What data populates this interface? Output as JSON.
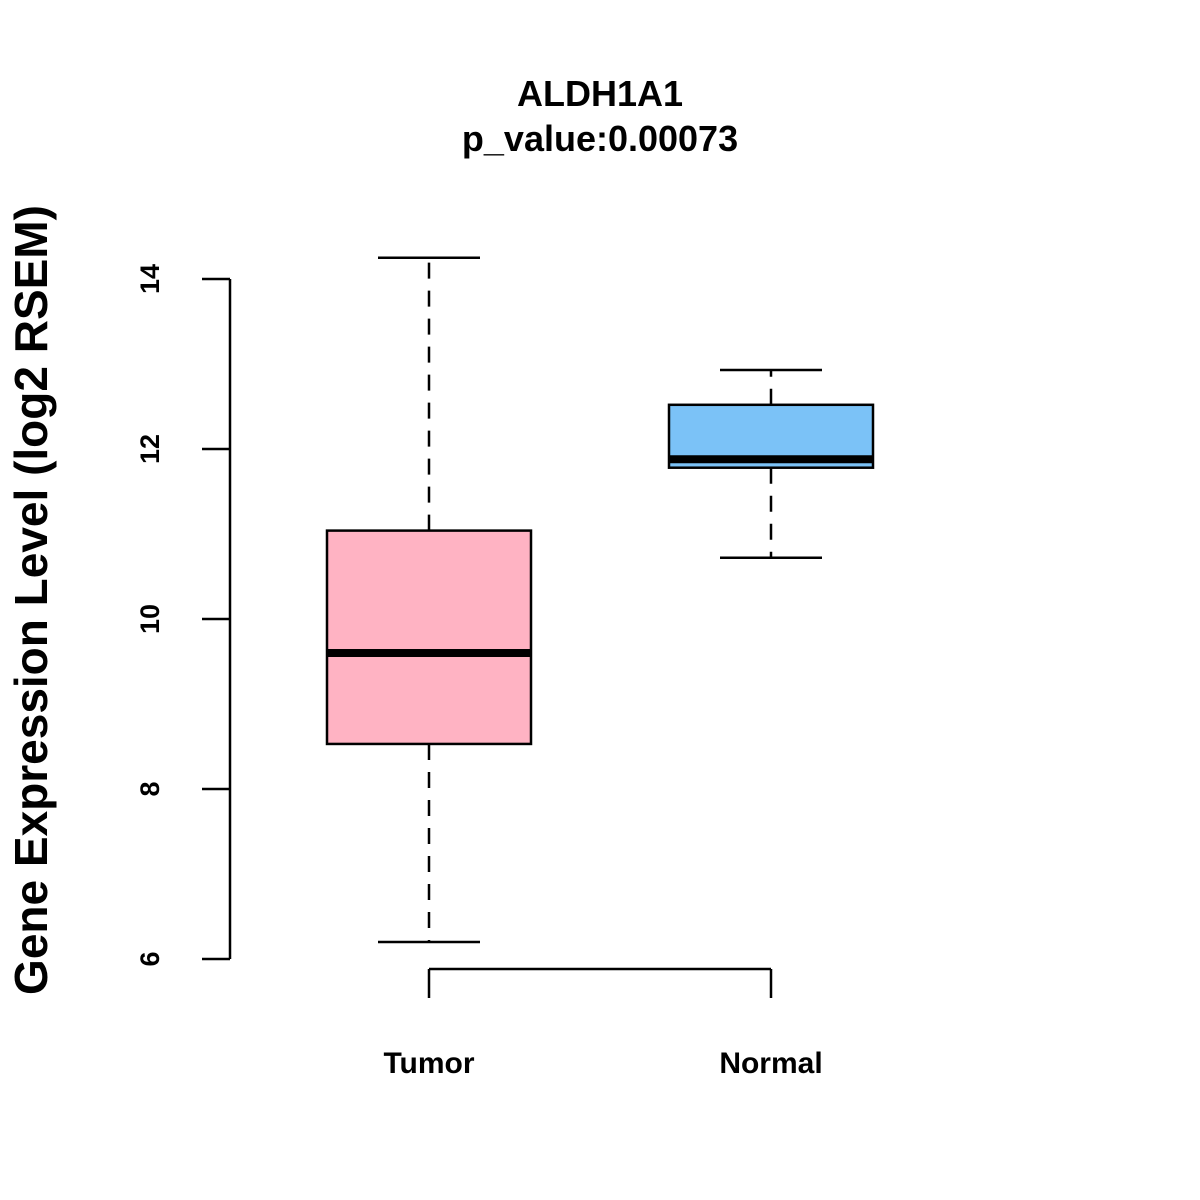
{
  "chart_data": {
    "type": "box",
    "title": "ALDH1A1",
    "subtitle": "p_value:0.00073",
    "xlabel": "",
    "ylabel": "Gene Expression Level (log2 RSEM)",
    "ylim": [
      5.85,
      14.3
    ],
    "yticks": [
      6,
      8,
      10,
      12,
      14
    ],
    "grid": false,
    "legend": "none",
    "categories": [
      "Tumor",
      "Normal"
    ],
    "boxes": [
      {
        "category": "Tumor",
        "whisker_low": 6.2,
        "q1": 8.53,
        "median": 9.6,
        "q3": 11.04,
        "whisker_high": 14.25,
        "color": "#FFB3C3"
      },
      {
        "category": "Normal",
        "whisker_low": 10.72,
        "q1": 11.78,
        "median": 11.88,
        "q3": 12.52,
        "whisker_high": 12.93,
        "color": "#7BC2F7"
      }
    ]
  }
}
